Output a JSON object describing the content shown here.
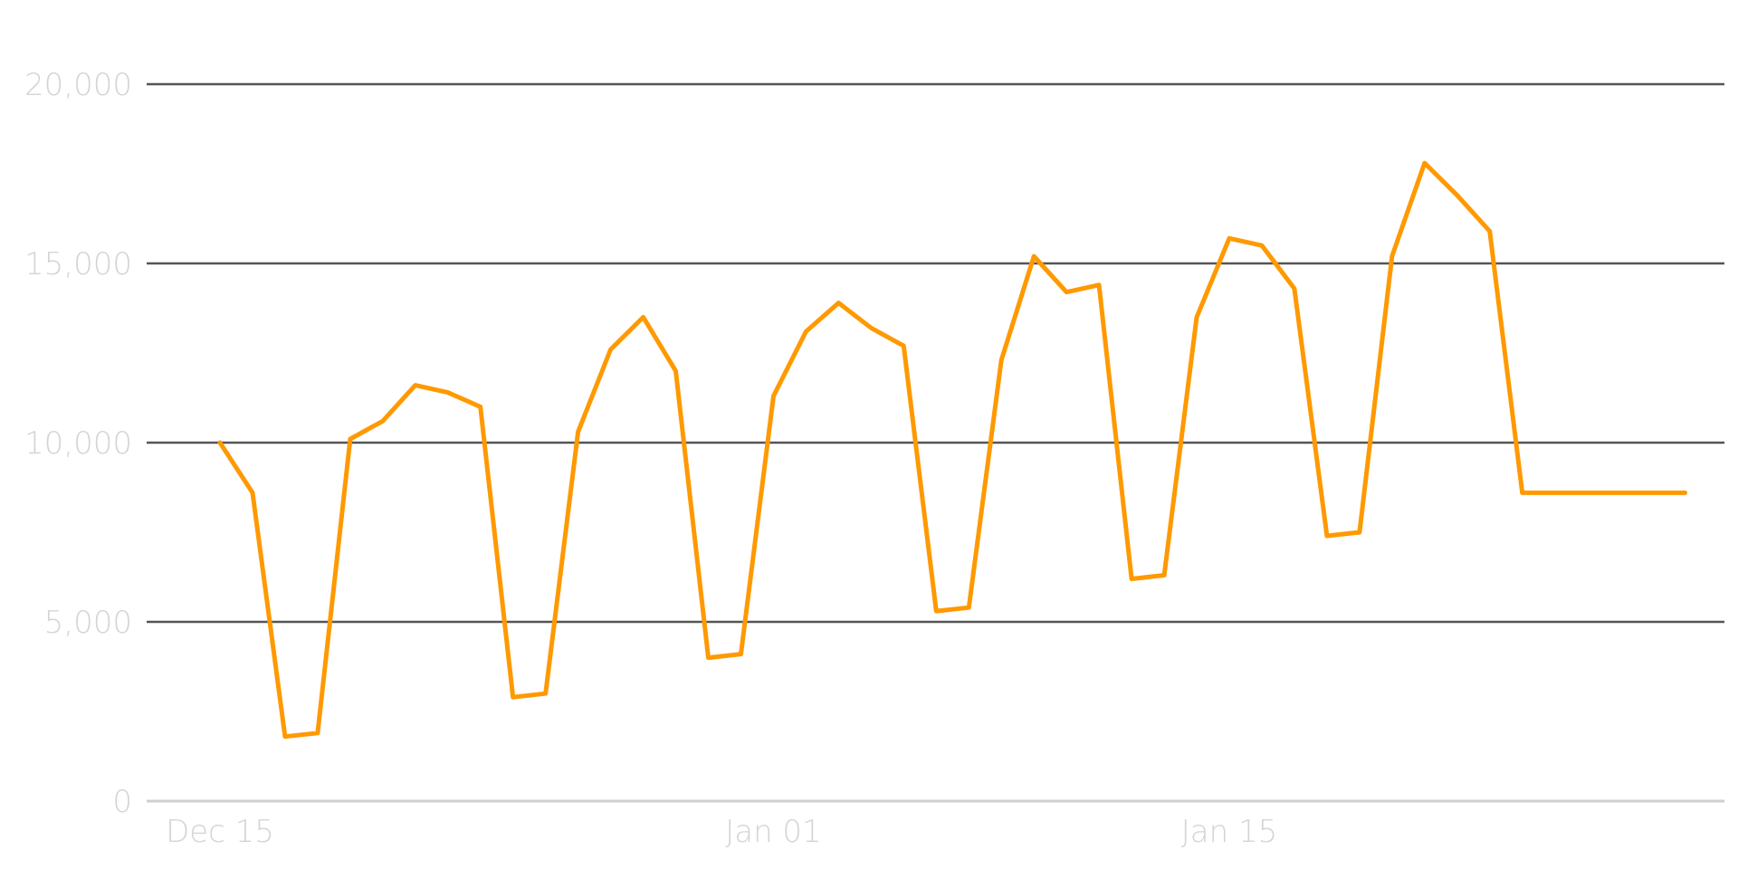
{
  "chart_data": {
    "type": "line",
    "title": "",
    "xlabel": "",
    "ylabel": "",
    "ylim": [
      0,
      20000
    ],
    "y_ticks": [
      0,
      5000,
      10000,
      15000,
      20000
    ],
    "y_tick_labels": [
      "0",
      "5,000",
      "10,000",
      "15,000",
      "20,000"
    ],
    "x_tick_labels": [
      "Dec 15",
      "Jan 01",
      "Jan 15"
    ],
    "x_tick_dates": [
      "2021-12-15",
      "2022-01-01",
      "2022-01-15"
    ],
    "x_range": [
      "2021-12-13",
      "2022-02-04"
    ],
    "grid": true,
    "legend": "none",
    "colors": {
      "line": "#FF9900",
      "grid": "#555555",
      "baseline": "#cfcfcf",
      "tick_text": "#d4d4d4"
    },
    "series": [
      {
        "dates": [
          "2021-12-15",
          "2021-12-16",
          "2021-12-17",
          "2021-12-18",
          "2021-12-19",
          "2021-12-20",
          "2021-12-21",
          "2021-12-22",
          "2021-12-23",
          "2021-12-24",
          "2021-12-25",
          "2021-12-26",
          "2021-12-27",
          "2021-12-28",
          "2021-12-29",
          "2021-12-30",
          "2021-12-31",
          "2022-01-01",
          "2022-01-02",
          "2022-01-03",
          "2022-01-04",
          "2022-01-05",
          "2022-01-06",
          "2022-01-07",
          "2022-01-08",
          "2022-01-09",
          "2022-01-10",
          "2022-01-11",
          "2022-01-12",
          "2022-01-13",
          "2022-01-14",
          "2022-01-15",
          "2022-01-16",
          "2022-01-17",
          "2022-01-18",
          "2022-01-19",
          "2022-01-20",
          "2022-01-21",
          "2022-01-22",
          "2022-01-23",
          "2022-01-24",
          "2022-01-25",
          "2022-01-26",
          "2022-01-27",
          "2022-01-28",
          "2022-01-29"
        ],
        "values": [
          10000,
          8600,
          1800,
          1900,
          10100,
          10600,
          11600,
          11400,
          11000,
          2900,
          3000,
          10300,
          12600,
          13500,
          12000,
          4000,
          4100,
          11300,
          13100,
          13900,
          13200,
          12700,
          5300,
          5400,
          12300,
          15200,
          14200,
          14400,
          6200,
          6300,
          13500,
          15700,
          15500,
          14300,
          7400,
          7500,
          15200,
          17800,
          16900,
          15900,
          8600,
          8600,
          8600,
          8600,
          8600,
          8600
        ]
      }
    ]
  }
}
